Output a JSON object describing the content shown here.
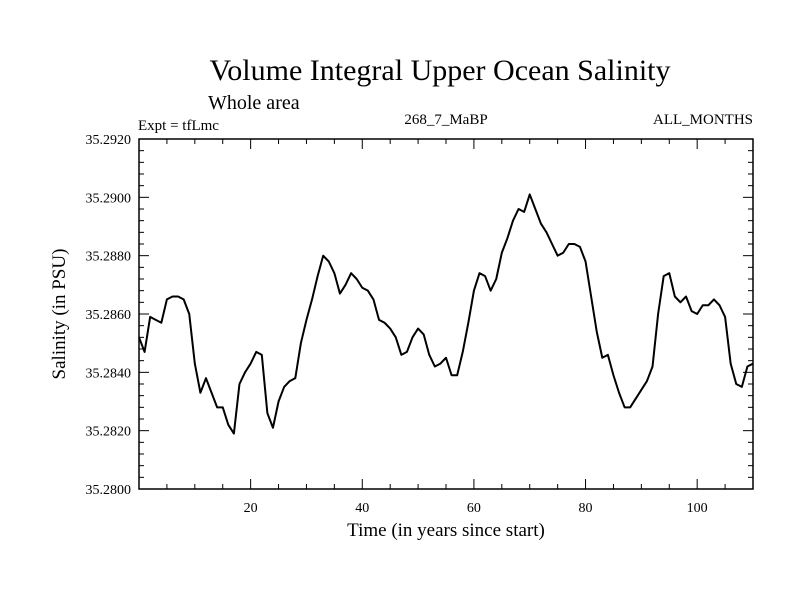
{
  "chart_data": {
    "type": "line",
    "title": "Volume Integral Upper Ocean Salinity",
    "subtitle": "Whole area",
    "expt_label": "Expt = tfLmc",
    "run_label": "268_7_MaBP",
    "months_label": "ALL_MONTHS",
    "xlabel": "Time (in years since start)",
    "ylabel": "Salinity (in PSU)",
    "xlim": [
      0,
      110
    ],
    "ylim": [
      35.28,
      35.292
    ],
    "xticks": [
      20,
      40,
      60,
      80,
      100
    ],
    "xtick_labels": [
      "20",
      "40",
      "60",
      "80",
      "100"
    ],
    "yticks": [
      35.28,
      35.282,
      35.284,
      35.286,
      35.288,
      35.29,
      35.292
    ],
    "ytick_labels": [
      "35.2800",
      "35.2820",
      "35.2840",
      "35.2860",
      "35.2880",
      "35.2900",
      "35.2920"
    ],
    "grid": false,
    "series": [
      {
        "name": "salinity",
        "x": [
          0,
          1,
          2,
          3,
          4,
          5,
          6,
          7,
          8,
          9,
          10,
          11,
          12,
          13,
          14,
          15,
          16,
          17,
          18,
          19,
          20,
          21,
          22,
          23,
          24,
          25,
          26,
          27,
          28,
          29,
          30,
          31,
          32,
          33,
          34,
          35,
          36,
          37,
          38,
          39,
          40,
          41,
          42,
          43,
          44,
          45,
          46,
          47,
          48,
          49,
          50,
          51,
          52,
          53,
          54,
          55,
          56,
          57,
          58,
          59,
          60,
          61,
          62,
          63,
          64,
          65,
          66,
          67,
          68,
          69,
          70,
          71,
          72,
          73,
          74,
          75,
          76,
          77,
          78,
          79,
          80,
          81,
          82,
          83,
          84,
          85,
          86,
          87,
          88,
          89,
          90,
          91,
          92,
          93,
          94,
          95,
          96,
          97,
          98,
          99,
          100,
          101,
          102,
          103,
          104,
          105,
          106,
          107,
          108,
          109,
          110
        ],
        "values": [
          35.2852,
          35.2847,
          35.2859,
          35.2858,
          35.2857,
          35.2865,
          35.2866,
          35.2866,
          35.2865,
          35.286,
          35.2843,
          35.2833,
          35.2838,
          35.2833,
          35.2828,
          35.2828,
          35.2822,
          35.2819,
          35.2836,
          35.284,
          35.2843,
          35.2847,
          35.2846,
          35.2826,
          35.2821,
          35.283,
          35.2835,
          35.2837,
          35.2838,
          35.285,
          35.2858,
          35.2865,
          35.2873,
          35.288,
          35.2878,
          35.2874,
          35.2867,
          35.287,
          35.2874,
          35.2872,
          35.2869,
          35.2868,
          35.2865,
          35.2858,
          35.2857,
          35.2855,
          35.2852,
          35.2846,
          35.2847,
          35.2852,
          35.2855,
          35.2853,
          35.2846,
          35.2842,
          35.2843,
          35.2845,
          35.2839,
          35.2839,
          35.2847,
          35.2857,
          35.2868,
          35.2874,
          35.2873,
          35.2868,
          35.2872,
          35.2881,
          35.2886,
          35.2892,
          35.2896,
          35.2895,
          35.2901,
          35.2896,
          35.2891,
          35.2888,
          35.2884,
          35.288,
          35.2881,
          35.2884,
          35.2884,
          35.2883,
          35.2878,
          35.2866,
          35.2854,
          35.2845,
          35.2846,
          35.2839,
          35.2833,
          35.2828,
          35.2828,
          35.2831,
          35.2834,
          35.2837,
          35.2842,
          35.286,
          35.2873,
          35.2874,
          35.2866,
          35.2864,
          35.2866,
          35.2861,
          35.286,
          35.2863,
          35.2863,
          35.2865,
          35.2863,
          35.2859,
          35.2843,
          35.2836,
          35.2835,
          35.2842,
          35.2843
        ]
      }
    ]
  }
}
